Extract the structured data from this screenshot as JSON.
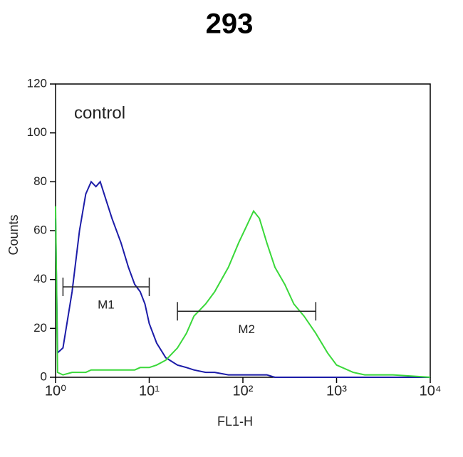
{
  "chart_data": {
    "type": "line",
    "title": "293",
    "xlabel": "FL1-H",
    "ylabel": "Counts",
    "annotation": "control",
    "log_x": true,
    "xlim": [
      1,
      10000
    ],
    "xticks": [
      {
        "value": 1,
        "label": "10⁰"
      },
      {
        "value": 10,
        "label": "10¹"
      },
      {
        "value": 100,
        "label": "10²"
      },
      {
        "value": 1000,
        "label": "10³"
      },
      {
        "value": 10000,
        "label": "10⁴"
      }
    ],
    "ylim": [
      0,
      120
    ],
    "yticks": [
      0,
      20,
      40,
      60,
      80,
      100,
      120
    ],
    "x": [
      1,
      1.05,
      1.2,
      1.5,
      1.8,
      2.1,
      2.4,
      2.7,
      3,
      3.5,
      4,
      5,
      6,
      7,
      8,
      9,
      10,
      12,
      15,
      20,
      25,
      30,
      40,
      50,
      70,
      90,
      110,
      130,
      150,
      180,
      220,
      280,
      350,
      450,
      600,
      800,
      1000,
      1500,
      2000,
      4000,
      10000
    ],
    "series": [
      {
        "color": "#1c1ca8",
        "values": [
          65,
          10,
          12,
          35,
          60,
          75,
          80,
          78,
          80,
          72,
          65,
          55,
          45,
          38,
          35,
          30,
          22,
          14,
          8,
          5,
          4,
          3,
          2,
          2,
          1,
          1,
          1,
          1,
          1,
          1,
          0,
          0,
          0,
          0,
          0,
          0,
          0,
          0,
          0,
          0,
          0
        ]
      },
      {
        "color": "#3ad83a",
        "values": [
          70,
          2,
          1,
          2,
          2,
          2,
          3,
          3,
          3,
          3,
          3,
          3,
          3,
          3,
          4,
          4,
          4,
          5,
          7,
          12,
          18,
          25,
          30,
          35,
          45,
          55,
          62,
          68,
          65,
          55,
          45,
          38,
          30,
          25,
          18,
          10,
          5,
          2,
          1,
          1,
          0
        ]
      }
    ],
    "gates": [
      {
        "label": "M1",
        "x": [
          1.2,
          10
        ],
        "y": 37
      },
      {
        "label": "M2",
        "x": [
          20,
          600
        ],
        "y": 27
      }
    ]
  }
}
